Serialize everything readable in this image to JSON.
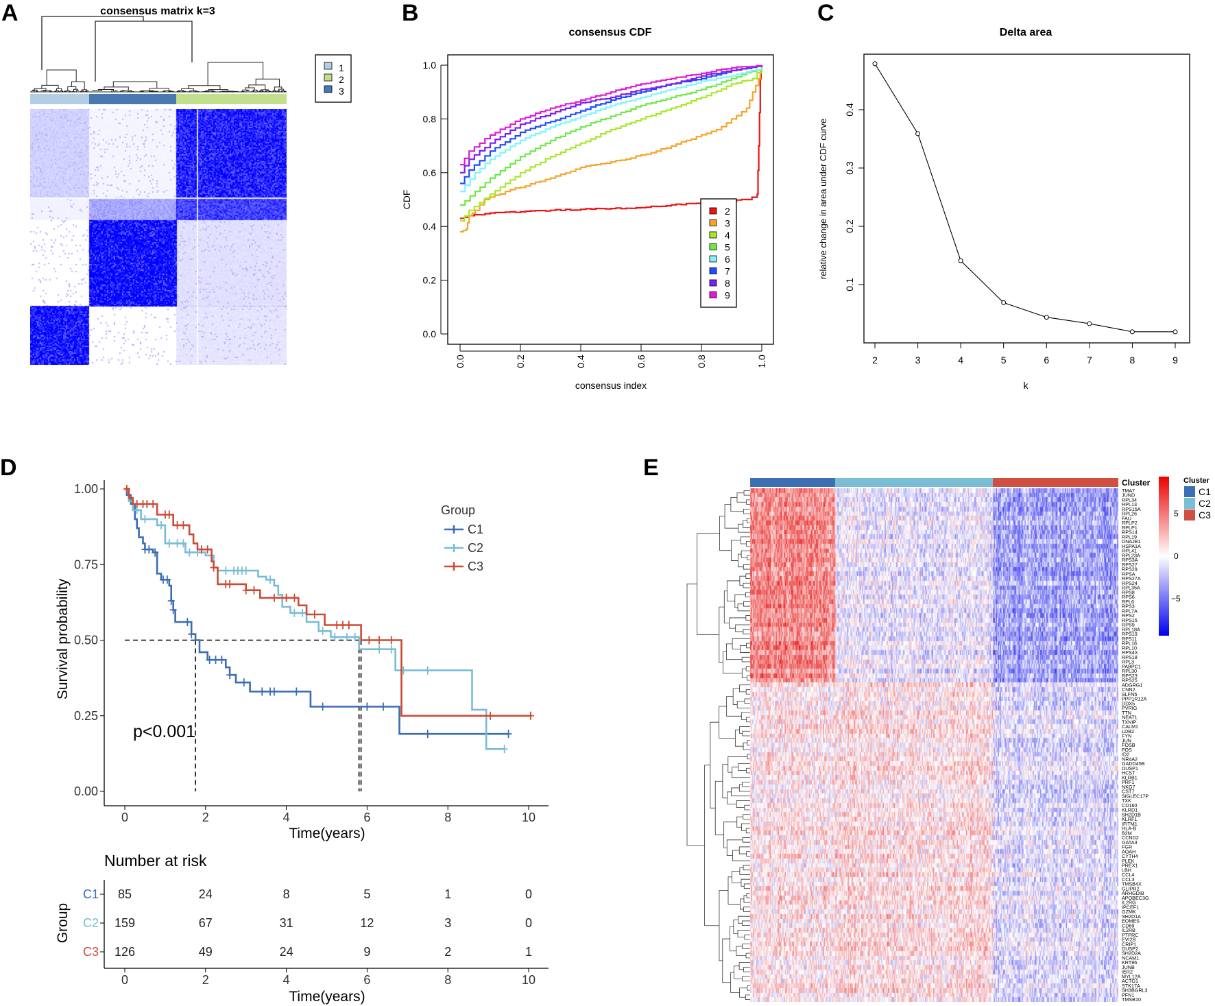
{
  "panel_labels": {
    "a": "A",
    "b": "B",
    "c": "C",
    "d": "D",
    "e": "E"
  },
  "chart_data": [
    {
      "panel": "A",
      "type": "heatmap",
      "title": "consensus matrix k=3",
      "legend": [
        {
          "label": "1",
          "color": "#b3cde3"
        },
        {
          "label": "2",
          "color": "#c2df8e"
        },
        {
          "label": "3",
          "color": "#4a78b0"
        }
      ],
      "column_clusters_order": [
        "1",
        "3",
        "2"
      ],
      "matrix_color": "#0000ff"
    },
    {
      "panel": "B",
      "type": "line",
      "title": "consensus CDF",
      "xlabel": "consensus index",
      "ylabel": "CDF",
      "xlim": [
        0,
        1
      ],
      "ylim": [
        0,
        1
      ],
      "xticks": [
        "0.0",
        "0.2",
        "0.4",
        "0.6",
        "0.8",
        "1.0"
      ],
      "yticks": [
        "0.0",
        "0.2",
        "0.4",
        "0.6",
        "0.8",
        "1.0"
      ],
      "legend_placement": "bottom-right",
      "series": [
        {
          "name": "2",
          "color": "#ee1111",
          "x": [
            0,
            0.03,
            0.1,
            0.3,
            0.6,
            0.7,
            0.85,
            0.95,
            0.985,
            0.99,
            0.995,
            1
          ],
          "y": [
            0.43,
            0.44,
            0.45,
            0.46,
            0.47,
            0.48,
            0.49,
            0.5,
            0.52,
            0.7,
            0.95,
            1
          ]
        },
        {
          "name": "3",
          "color": "#f5a52a",
          "x": [
            0,
            0.02,
            0.03,
            0.05,
            0.08,
            0.15,
            0.3,
            0.4,
            0.55,
            0.65,
            0.75,
            0.85,
            0.9,
            0.95,
            0.97,
            0.99,
            1
          ],
          "y": [
            0.38,
            0.39,
            0.44,
            0.46,
            0.5,
            0.53,
            0.58,
            0.62,
            0.65,
            0.68,
            0.72,
            0.76,
            0.8,
            0.84,
            0.9,
            0.95,
            1
          ]
        },
        {
          "name": "4",
          "color": "#a8e82c",
          "x": [
            0,
            0.03,
            0.1,
            0.2,
            0.3,
            0.4,
            0.5,
            0.6,
            0.7,
            0.8,
            0.9,
            0.97,
            1
          ],
          "y": [
            0.42,
            0.46,
            0.52,
            0.6,
            0.66,
            0.71,
            0.76,
            0.8,
            0.84,
            0.88,
            0.93,
            0.95,
            0.99
          ]
        },
        {
          "name": "5",
          "color": "#6fe84a",
          "x": [
            0,
            0.05,
            0.1,
            0.2,
            0.3,
            0.4,
            0.5,
            0.6,
            0.7,
            0.8,
            0.9,
            1
          ],
          "y": [
            0.48,
            0.53,
            0.58,
            0.66,
            0.72,
            0.77,
            0.81,
            0.85,
            0.88,
            0.91,
            0.95,
            0.99
          ]
        },
        {
          "name": "6",
          "color": "#7ff5fa",
          "x": [
            0,
            0.05,
            0.1,
            0.2,
            0.3,
            0.4,
            0.5,
            0.6,
            0.7,
            0.8,
            0.9,
            1
          ],
          "y": [
            0.53,
            0.6,
            0.65,
            0.72,
            0.77,
            0.81,
            0.85,
            0.88,
            0.91,
            0.94,
            0.96,
            0.99
          ]
        },
        {
          "name": "7",
          "color": "#1f4cff",
          "x": [
            0,
            0.03,
            0.1,
            0.2,
            0.3,
            0.4,
            0.5,
            0.6,
            0.7,
            0.8,
            0.9,
            1
          ],
          "y": [
            0.56,
            0.61,
            0.68,
            0.75,
            0.79,
            0.83,
            0.87,
            0.9,
            0.93,
            0.95,
            0.98,
            1
          ]
        },
        {
          "name": "8",
          "color": "#7a1ff5",
          "x": [
            0,
            0.03,
            0.1,
            0.2,
            0.3,
            0.4,
            0.5,
            0.6,
            0.7,
            0.8,
            0.9,
            1
          ],
          "y": [
            0.6,
            0.65,
            0.71,
            0.78,
            0.82,
            0.86,
            0.88,
            0.91,
            0.93,
            0.96,
            0.98,
            1
          ]
        },
        {
          "name": "9",
          "color": "#e01ad0",
          "x": [
            0,
            0.03,
            0.1,
            0.2,
            0.3,
            0.4,
            0.5,
            0.6,
            0.7,
            0.8,
            0.9,
            1
          ],
          "y": [
            0.63,
            0.68,
            0.74,
            0.8,
            0.84,
            0.87,
            0.9,
            0.93,
            0.95,
            0.97,
            0.99,
            1
          ]
        }
      ]
    },
    {
      "panel": "C",
      "type": "line",
      "title": "Delta area",
      "xlabel": "k",
      "ylabel": "relative change in area under CDF curve",
      "x": [
        2,
        3,
        4,
        5,
        6,
        7,
        8,
        9
      ],
      "y": [
        0.479,
        0.359,
        0.141,
        0.069,
        0.044,
        0.033,
        0.019,
        0.019
      ],
      "xticks": [
        "2",
        "3",
        "4",
        "5",
        "6",
        "7",
        "8",
        "9"
      ],
      "yticks": [
        "0.1",
        "0.2",
        "0.3",
        "0.4"
      ]
    },
    {
      "panel": "D",
      "type": "line",
      "subtype": "kaplan-meier",
      "xlabel": "Time(years)",
      "ylabel": "Survival probability",
      "xlim": [
        0,
        10
      ],
      "ylim": [
        0,
        1
      ],
      "xticks": [
        "0",
        "2",
        "4",
        "6",
        "8",
        "10"
      ],
      "yticks": [
        "0.00",
        "0.25",
        "0.50",
        "0.75",
        "1.00"
      ],
      "legend_title": "Group",
      "legend_placement": "top-right",
      "pvalue": "p<0.001",
      "median_survival": {
        "C1": 1.75,
        "C2": 5.8,
        "C3": 5.85
      },
      "series": [
        {
          "name": "C1",
          "color": "#3a6db4",
          "t": [
            0,
            0.05,
            0.15,
            0.25,
            0.3,
            0.35,
            0.45,
            0.5,
            0.7,
            0.8,
            0.9,
            1.1,
            1.15,
            1.2,
            1.25,
            1.65,
            1.75,
            1.85,
            2.05,
            2.5,
            2.6,
            2.75,
            3.1,
            4.6,
            6.8,
            9.5
          ],
          "s": [
            1,
            0.98,
            0.95,
            0.9,
            0.87,
            0.84,
            0.82,
            0.8,
            0.79,
            0.72,
            0.7,
            0.68,
            0.63,
            0.6,
            0.56,
            0.52,
            0.5,
            0.46,
            0.435,
            0.41,
            0.385,
            0.36,
            0.33,
            0.28,
            0.19,
            0.19
          ],
          "censor": [
            0.5,
            0.6,
            0.75,
            0.95,
            1.05,
            1.15,
            1.2,
            1.55,
            1.65,
            2.1,
            2.25,
            2.4,
            2.6,
            2.95,
            3.4,
            3.6,
            3.7,
            4.25,
            4.9,
            6.0,
            6.4,
            7.5,
            9.5
          ]
        },
        {
          "name": "C2",
          "color": "#77bcd6",
          "t": [
            0,
            0.1,
            0.2,
            0.4,
            0.8,
            1.0,
            1.5,
            2.0,
            2.2,
            2.3,
            3.3,
            3.5,
            3.7,
            3.8,
            3.9,
            4.1,
            4.5,
            4.8,
            5.1,
            5.8,
            6.7,
            8.6,
            8.95,
            9.4
          ],
          "s": [
            1,
            0.96,
            0.93,
            0.9,
            0.88,
            0.82,
            0.79,
            0.78,
            0.74,
            0.73,
            0.71,
            0.7,
            0.68,
            0.65,
            0.61,
            0.59,
            0.56,
            0.53,
            0.51,
            0.47,
            0.4,
            0.27,
            0.14,
            0.14
          ],
          "censor": [
            0.3,
            0.5,
            0.9,
            1.1,
            1.3,
            1.45,
            1.6,
            1.8,
            2.5,
            2.7,
            2.8,
            2.9,
            3.0,
            3.6,
            4.2,
            4.4,
            4.9,
            5.2,
            5.5,
            5.7,
            6.3,
            6.6,
            6.9,
            7.5,
            9.4
          ]
        },
        {
          "name": "C3",
          "color": "#cc4a35",
          "t": [
            0,
            0.1,
            0.2,
            0.8,
            1.2,
            1.6,
            1.7,
            1.8,
            2.15,
            2.2,
            2.3,
            3.0,
            3.35,
            4.3,
            4.5,
            4.95,
            5.85,
            6.85,
            10.05
          ],
          "s": [
            1,
            0.97,
            0.95,
            0.915,
            0.88,
            0.85,
            0.82,
            0.8,
            0.76,
            0.74,
            0.685,
            0.665,
            0.64,
            0.615,
            0.585,
            0.55,
            0.5,
            0.25,
            0.25
          ],
          "censor": [
            0.05,
            0.3,
            0.45,
            0.55,
            0.7,
            1.0,
            1.1,
            1.3,
            1.45,
            1.9,
            2.05,
            2.2,
            2.5,
            2.6,
            3.0,
            3.2,
            3.7,
            4.0,
            4.2,
            4.7,
            5.25,
            5.4,
            5.55,
            6.05,
            6.3,
            6.6,
            9.05,
            10.05
          ]
        }
      ],
      "risk_table": {
        "title": "Number at risk",
        "ylabel": "Group",
        "xlabel": "Time(years)",
        "times": [
          "0",
          "2",
          "4",
          "6",
          "8",
          "10"
        ],
        "rows": [
          {
            "group": "C1",
            "color": "#3a6db4",
            "counts": [
              "85",
              "24",
              "8",
              "5",
              "1",
              "0"
            ]
          },
          {
            "group": "C2",
            "color": "#77bcd6",
            "counts": [
              "159",
              "67",
              "31",
              "12",
              "3",
              "0"
            ]
          },
          {
            "group": "C3",
            "color": "#cc4a35",
            "counts": [
              "126",
              "49",
              "24",
              "9",
              "2",
              "1"
            ]
          }
        ]
      }
    },
    {
      "panel": "E",
      "type": "heatmap",
      "annotation_title": "Cluster",
      "legend_title": "Cluster",
      "clusters": [
        {
          "name": "C1",
          "color": "#3d6fb3"
        },
        {
          "name": "C2",
          "color": "#7bbdd6"
        },
        {
          "name": "C3",
          "color": "#cf5040"
        }
      ],
      "colorbar": {
        "ticks": [
          "5",
          "0",
          "−5"
        ],
        "high": "#ee0000",
        "mid": "#ffffff",
        "low": "#0000ee",
        "range": [
          -8,
          8
        ]
      },
      "genes": [
        "TMA7",
        "JUND",
        "RPL34",
        "RPL13",
        "RPS15A",
        "RPL26",
        "FAU",
        "RPLP2",
        "RPLP1",
        "RPS14",
        "RPL19",
        "DNAJB1",
        "HSPA1A",
        "RPL41",
        "RPL23A",
        "RPS3A",
        "RPS27",
        "RPS29",
        "RPSA",
        "RPS27A",
        "RPS24",
        "RPL35A",
        "RPS8",
        "RPS6",
        "RPL6",
        "RPS3",
        "RPL7A",
        "RPS2",
        "RPS15",
        "RPS9",
        "RPL18A",
        "RPS19",
        "RPS11",
        "RPL18",
        "RPL10",
        "RPS4X",
        "RPS18",
        "RPL3",
        "PABPC1",
        "RPL30",
        "RPS23",
        "RPS25",
        "ADGRG1",
        "CNN2",
        "SLFN5",
        "PPP1R12A",
        "DDX5",
        "PVRIG",
        "TTN",
        "NEAT1",
        "TXNIP",
        "CALM1",
        "LDB2",
        "FYN",
        "JUN",
        "FOSB",
        "FOS",
        "ID2",
        "NR4A2",
        "GADD45B",
        "DUSP1",
        "HCST",
        "KLRB1",
        "PRF1",
        "NKG7",
        "CST7",
        "SIGLEC17P",
        "TXK",
        "CD160",
        "KLRD1",
        "SH2D1B",
        "KLRF1",
        "IFITM1",
        "HLA-B",
        "B2M",
        "CCND2",
        "GATA3",
        "FGR",
        "AOAH",
        "CYTH4",
        "PLEK",
        "PREX1",
        "LBH",
        "CCL4",
        "CCL3",
        "TMSB4X",
        "GLIPR2",
        "ARHGDIB",
        "APOBEC3G",
        "IL2RG",
        "IPCEF1",
        "GZMK",
        "SH2D1A",
        "EOMES",
        "CD69",
        "IL2RB",
        "PTPRC",
        "EVI2B",
        "CRIP1",
        "DUSP2",
        "SH2D2A",
        "NCAM1",
        "KRT86",
        "JUNB",
        "IER2",
        "MYL12A",
        "ACTG1",
        "STK17A",
        "SH3BGRL3",
        "PFN1",
        "TMSB10"
      ]
    }
  ]
}
